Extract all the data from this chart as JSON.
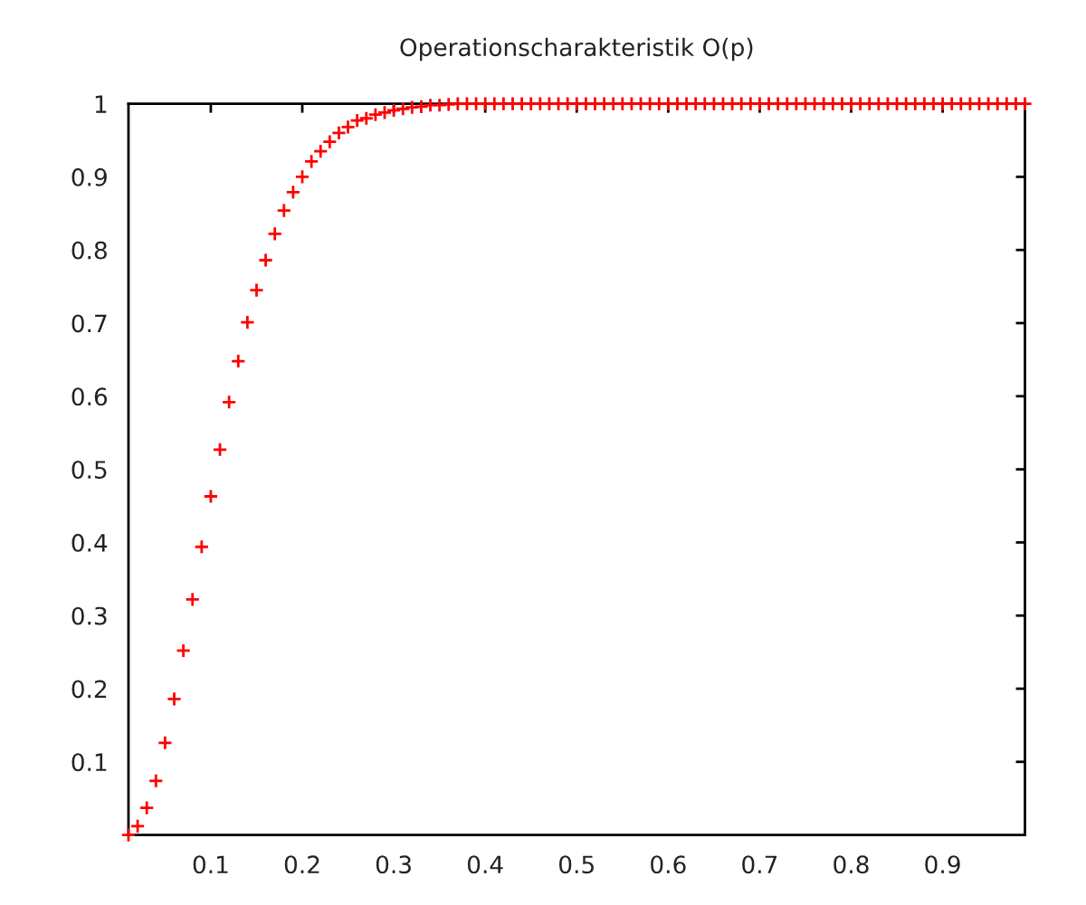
{
  "chart_data": {
    "type": "scatter",
    "title": "Operationscharakteristik O(p)",
    "x": [
      0.01,
      0.02,
      0.03,
      0.04,
      0.05,
      0.06,
      0.07,
      0.08,
      0.09,
      0.1,
      0.11,
      0.12,
      0.13,
      0.14,
      0.15,
      0.16,
      0.17,
      0.18,
      0.19,
      0.2,
      0.21,
      0.22,
      0.23,
      0.24,
      0.25,
      0.26,
      0.27,
      0.28,
      0.29,
      0.3,
      0.31,
      0.32,
      0.33,
      0.34,
      0.35,
      0.36,
      0.37,
      0.38,
      0.39,
      0.4,
      0.41,
      0.42,
      0.43,
      0.44,
      0.45,
      0.46,
      0.47,
      0.48,
      0.49,
      0.5,
      0.51,
      0.52,
      0.53,
      0.54,
      0.55,
      0.56,
      0.57,
      0.58,
      0.59,
      0.6,
      0.61,
      0.62,
      0.63,
      0.64,
      0.65,
      0.66,
      0.67,
      0.68,
      0.69,
      0.7,
      0.71,
      0.72,
      0.73,
      0.74,
      0.75,
      0.76,
      0.77,
      0.78,
      0.79,
      0.8,
      0.81,
      0.82,
      0.83,
      0.84,
      0.85,
      0.86,
      0.87,
      0.88,
      0.89,
      0.9,
      0.91,
      0.92,
      0.93,
      0.94,
      0.95,
      0.96,
      0.97,
      0.98,
      0.99
    ],
    "values": [
      0.0,
      0.012,
      0.037,
      0.074,
      0.126,
      0.186,
      0.252,
      0.322,
      0.394,
      0.463,
      0.527,
      0.592,
      0.648,
      0.701,
      0.745,
      0.786,
      0.822,
      0.854,
      0.879,
      0.9,
      0.921,
      0.935,
      0.948,
      0.96,
      0.968,
      0.977,
      0.98,
      0.985,
      0.988,
      0.991,
      0.993,
      0.995,
      0.996,
      0.998,
      0.998,
      0.999,
      1.0,
      1.0,
      1.0,
      1.0,
      1.0,
      1.0,
      1.0,
      1.0,
      1.0,
      1.0,
      1.0,
      1.0,
      1.0,
      1.0,
      1.0,
      1.0,
      1.0,
      1.0,
      1.0,
      1.0,
      1.0,
      1.0,
      1.0,
      1.0,
      1.0,
      1.0,
      1.0,
      1.0,
      1.0,
      1.0,
      1.0,
      1.0,
      1.0,
      1.0,
      1.0,
      1.0,
      1.0,
      1.0,
      1.0,
      1.0,
      1.0,
      1.0,
      1.0,
      1.0,
      1.0,
      1.0,
      1.0,
      1.0,
      1.0,
      1.0,
      1.0,
      1.0,
      1.0,
      1.0,
      1.0,
      1.0,
      1.0,
      1.0,
      1.0,
      1.0,
      1.0,
      1.0,
      1.0
    ],
    "color": "#ff0000",
    "marker": "cross",
    "xlim": [
      0.01,
      0.99
    ],
    "xticks": [
      0.1,
      0.2,
      0.3,
      0.4,
      0.5,
      0.6,
      0.7,
      0.8,
      0.9
    ],
    "ylim": [
      0,
      1
    ],
    "yticks": [
      0.1,
      0.2,
      0.3,
      0.4,
      0.5,
      0.6,
      0.7,
      0.8,
      0.9,
      1
    ],
    "grid": false,
    "legend": false
  }
}
